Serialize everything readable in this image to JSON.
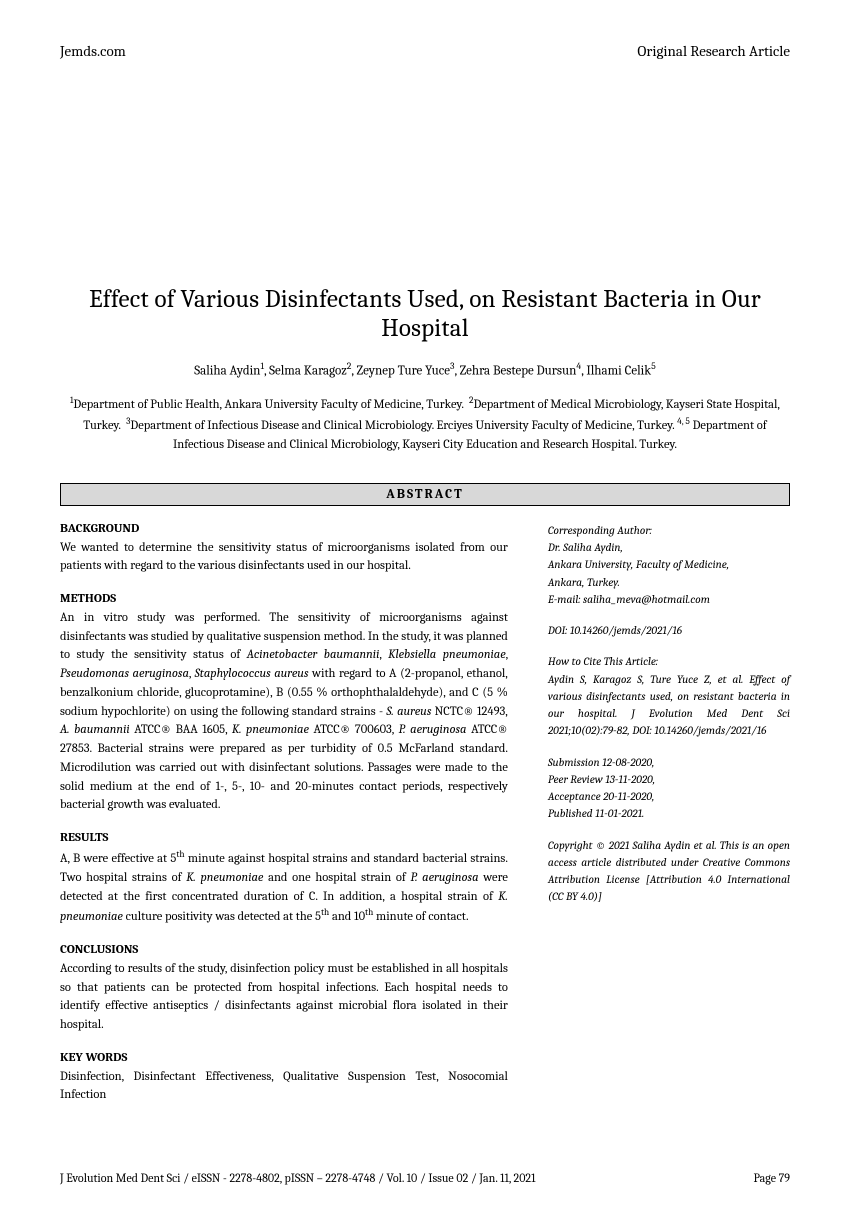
{
  "header": {
    "left": "Jemds.com",
    "right": "Original Research Article"
  },
  "title": "Effect of Various Disinfectants Used, on Resistant Bacteria in Our Hospital",
  "authors_html": "Saliha Aydin<sup>1</sup>, Selma Karagoz<sup>2</sup>, Zeynep Ture Yuce<sup>3</sup>, Zehra Bestepe Dursun<sup>4</sup>, Ilhami Celik<sup>5</sup>",
  "affiliations_html": "<sup>1</sup>Department of Public Health, Ankara University Faculty of Medicine, Turkey. &nbsp;<sup>2</sup>Department of Medical Microbiology, Kayseri State Hospital, Turkey. &nbsp;<sup>3</sup>Department of Infectious Disease and Clinical Microbiology. Erciyes University Faculty of Medicine, Turkey. <sup>4, 5</sup> Department of Infectious Disease and Clinical Microbiology, Kayseri City Education and Research Hospital. Turkey.",
  "abstract_label": "ABSTRACT",
  "sections": {
    "background": {
      "heading": "BACKGROUND",
      "body": "We wanted to determine the sensitivity status of microorganisms isolated from our patients with regard to the various disinfectants used in our hospital."
    },
    "methods": {
      "heading": "METHODS",
      "body_html": "An in vitro study was performed. The sensitivity of microorganisms against disinfectants was studied by qualitative suspension method. In the study, it was planned to study the sensitivity status of <span class=\"italic\">Acinetobacter baumannii</span>, <span class=\"italic\">Klebsiella pneumoniae</span>, <span class=\"italic\">Pseudomonas aeruginosa</span>, <span class=\"italic\">Staphylococcus aureus</span> with regard to A (2-propanol, ethanol, benzalkonium chloride, glucoprotamine), B (0.55 % orthophthalaldehyde), and C (5 % sodium hypochlorite) on using the following standard strains - <span class=\"italic\">S. aureus</span> NCTC® 12493, <span class=\"italic\">A. baumannii</span> ATCC® BAA 1605, <span class=\"italic\">K. pneumoniae</span> ATCC® 700603, <span class=\"italic\">P. aeruginosa</span> ATCC® 27853. Bacterial strains were prepared as per turbidity of 0.5 McFarland standard. Microdilution was carried out with disinfectant solutions. Passages were made to the solid medium at the end of 1-, 5-, 10- and 20-minutes contact periods, respectively bacterial growth was evaluated."
    },
    "results": {
      "heading": "RESULTS",
      "body_html": "A, B were effective at 5<sup>th</sup> minute against hospital strains and standard bacterial strains. Two hospital strains of <span class=\"italic\">K. pneumoniae</span> and one hospital strain of <span class=\"italic\">P. aeruginosa</span> were detected at the first concentrated duration of C. In addition, a hospital strain of <span class=\"italic\">K. pneumoniae</span> culture positivity was detected at the 5<sup>th</sup> and 10<sup>th</sup> minute of contact."
    },
    "conclusions": {
      "heading": "CONCLUSIONS",
      "body": "According to results of the study, disinfection policy must be established in all hospitals so that patients can be protected from hospital infections. Each hospital needs to identify effective antiseptics / disinfectants against microbial flora isolated in their hospital."
    },
    "keywords": {
      "heading": "KEY WORDS",
      "body": "Disinfection, Disinfectant Effectiveness, Qualitative Suspension Test, Nosocomial Infection"
    }
  },
  "sidebar": {
    "corresponding": {
      "label": "Corresponding Author:",
      "name": "Dr. Saliha Aydin,",
      "affil": "Ankara University, Faculty of Medicine,",
      "location": "Ankara, Turkey.",
      "email": "E-mail: saliha_meva@hotmail.com"
    },
    "doi": "DOI: 10.14260/jemds/2021/16",
    "howto": {
      "label": "How to Cite This Article:",
      "text": "Aydin S, Karagoz S, Ture Yuce Z, et al. Effect of various disinfectants used, on resistant bacteria in our hospital. J Evolution Med Dent Sci 2021;10(02):79-82, DOI: 10.14260/jemds/2021/16"
    },
    "dates": {
      "submission": "Submission 12-08-2020,",
      "review": "Peer Review 13-11-2020,",
      "acceptance": "Acceptance 20-11-2020,",
      "published": "Published 11-01-2021."
    },
    "copyright": "Copyright © 2021 Saliha Aydin et al. This is an open access article distributed under Creative Commons Attribution License [Attribution 4.0 International (CC BY 4.0)]"
  },
  "footer": {
    "left": "J Evolution Med Dent Sci / eISSN - 2278-4802, pISSN – 2278-4748 / Vol. 10 / Issue 02 / Jan. 11, 2021",
    "right": "Page 79"
  }
}
